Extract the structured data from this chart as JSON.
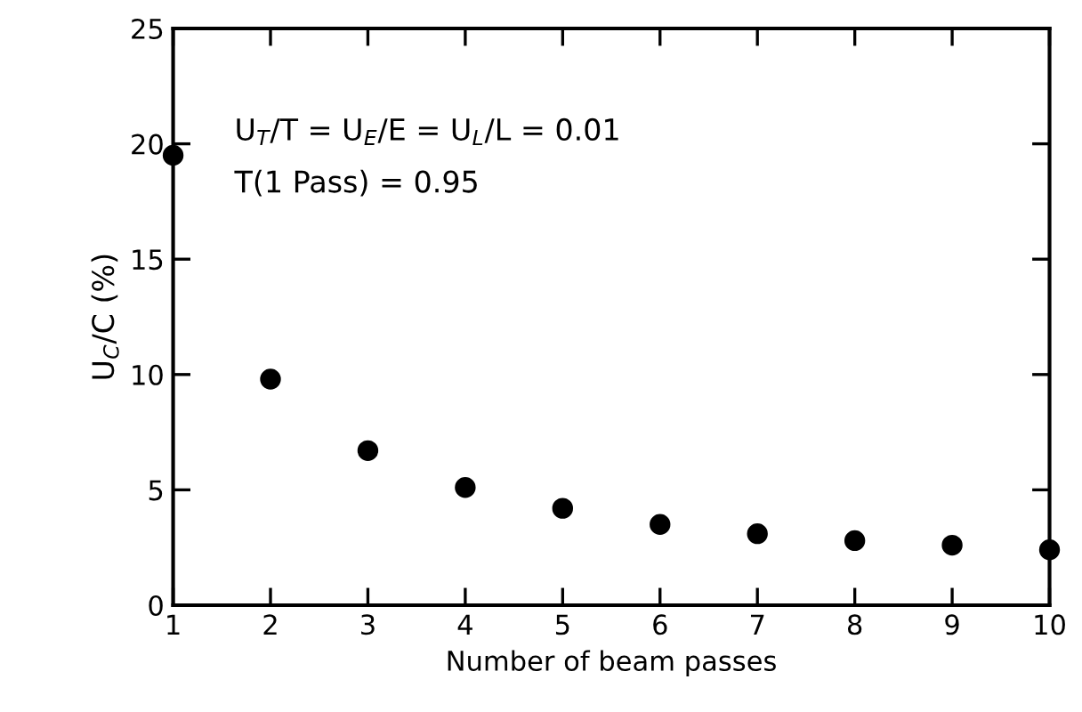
{
  "chart_data": {
    "type": "scatter",
    "xlabel": "Number of beam passes",
    "ylabel": "U$_{C}$/C (%)",
    "x": [
      1,
      2,
      3,
      4,
      5,
      6,
      7,
      8,
      9,
      10
    ],
    "series": [
      {
        "color": "#000000",
        "values": [
          19.5,
          9.8,
          6.7,
          5.1,
          4.2,
          3.5,
          3.1,
          2.8,
          2.6,
          2.4
        ]
      }
    ],
    "xlim": [
      1,
      10
    ],
    "ylim": [
      0,
      25
    ],
    "xticks": [
      1,
      2,
      3,
      4,
      5,
      6,
      7,
      8,
      9,
      10
    ],
    "yticks": [
      0,
      5,
      10,
      15,
      20,
      25
    ],
    "marker": "circle",
    "grid": false,
    "legend": false,
    "annotations": [
      "U$_{T}$/T = U$_{E}$/E = U$_{L}$/L = 0.01",
      "T(1 Pass) = 0.95"
    ]
  }
}
